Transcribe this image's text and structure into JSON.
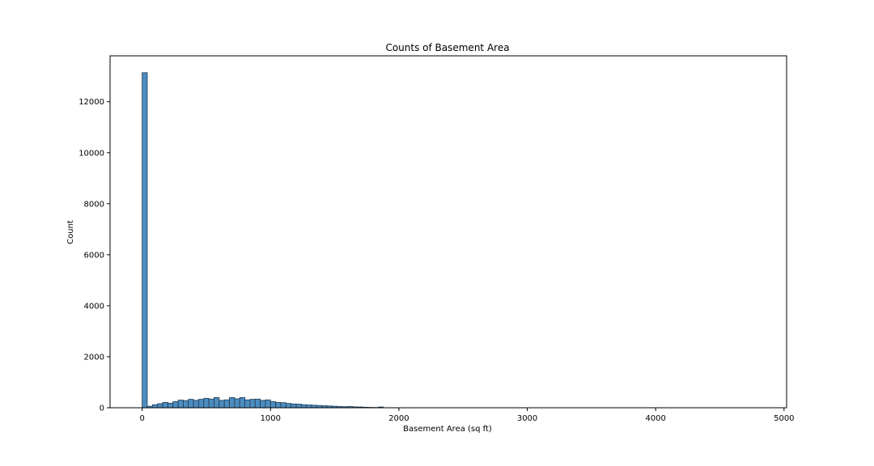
{
  "chart_data": {
    "type": "bar",
    "subtype": "histogram",
    "title": "Counts of Basement Area",
    "xlabel": "Basement Area (sq ft)",
    "ylabel": "Count",
    "xlim": [
      -250,
      5020
    ],
    "ylim": [
      0,
      13800
    ],
    "xticks": [
      0,
      1000,
      2000,
      3000,
      4000,
      5000
    ],
    "yticks": [
      0,
      2000,
      4000,
      6000,
      8000,
      10000,
      12000
    ],
    "grid": false,
    "legend": "none",
    "bar_color": "#4c8cbf",
    "edge_color": "#1f3a52",
    "bin_width": 40,
    "bins_start": [
      0,
      40,
      80,
      120,
      160,
      200,
      240,
      280,
      320,
      360,
      400,
      440,
      480,
      520,
      560,
      600,
      640,
      680,
      720,
      760,
      800,
      840,
      880,
      920,
      960,
      1000,
      1040,
      1080,
      1120,
      1160,
      1200,
      1240,
      1280,
      1320,
      1360,
      1400,
      1440,
      1480,
      1520,
      1560,
      1600,
      1640,
      1680,
      1720,
      1760,
      1800,
      1840
    ],
    "counts": [
      13140,
      60,
      120,
      160,
      210,
      180,
      240,
      300,
      280,
      330,
      290,
      330,
      370,
      340,
      400,
      290,
      310,
      400,
      350,
      400,
      310,
      330,
      340,
      290,
      310,
      240,
      210,
      200,
      170,
      150,
      140,
      120,
      110,
      100,
      90,
      80,
      70,
      60,
      50,
      40,
      50,
      35,
      30,
      20,
      15,
      10,
      30
    ]
  }
}
